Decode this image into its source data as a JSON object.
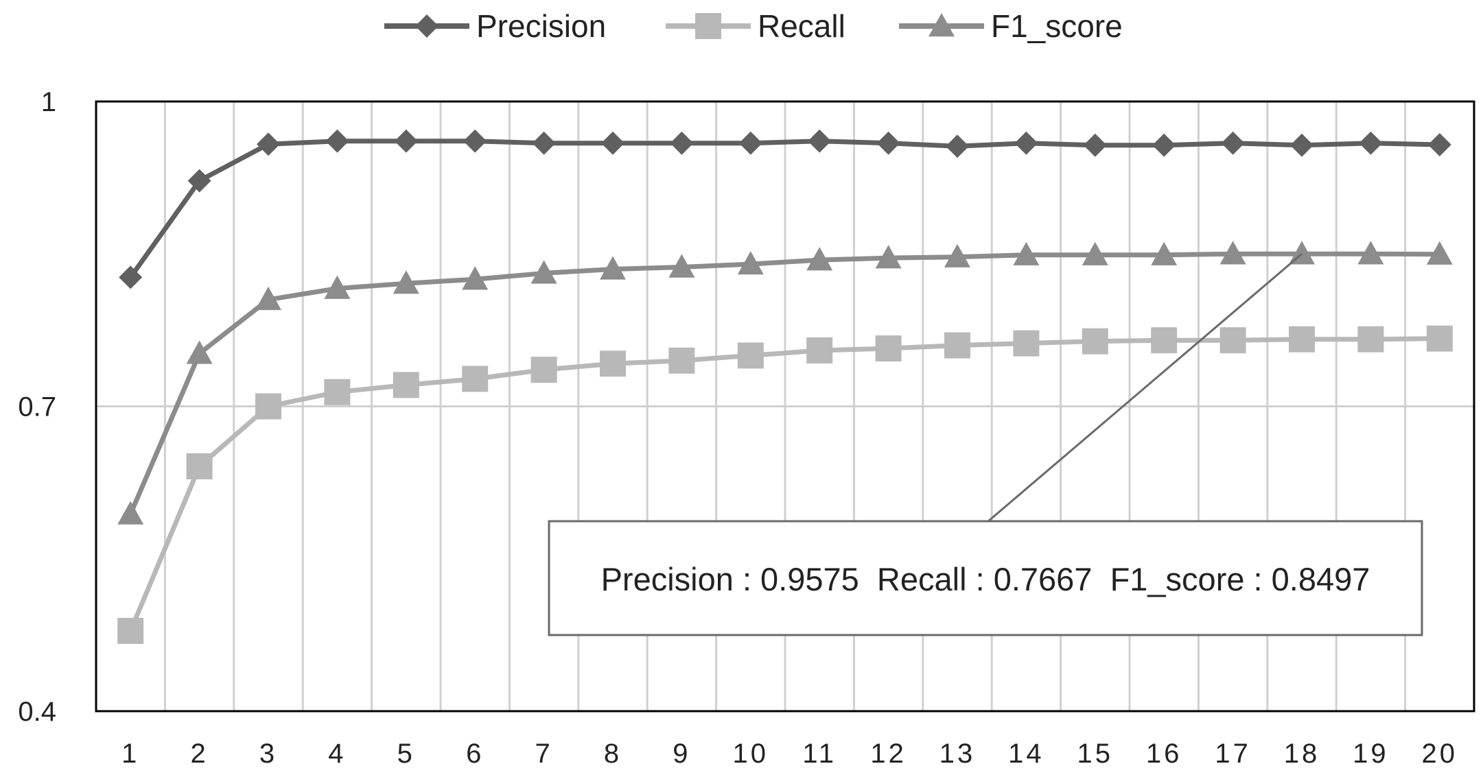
{
  "chart_data": {
    "type": "line",
    "title": "",
    "xlabel": "",
    "ylabel": "",
    "x": [
      1,
      2,
      3,
      4,
      5,
      6,
      7,
      8,
      9,
      10,
      11,
      12,
      13,
      14,
      15,
      16,
      17,
      18,
      19,
      20
    ],
    "x_tick_labels": [
      "1",
      "2",
      "3",
      "4",
      "5",
      "6",
      "7",
      "8",
      "9",
      "10",
      "11",
      "12",
      "13",
      "14",
      "15",
      "16",
      "17",
      "18",
      "19",
      "20"
    ],
    "ylim": [
      0.4,
      1.0
    ],
    "y_ticks": [
      0.4,
      0.7,
      1.0
    ],
    "y_tick_labels": [
      "0.4",
      "0.7",
      "1"
    ],
    "grid": true,
    "legend_position": "top",
    "colors": {
      "precision": "#606060",
      "recall": "#b8b8b8",
      "f1": "#8c8c8c",
      "grid": "#d0d0d0",
      "frame": "#000000"
    },
    "series": [
      {
        "key": "precision",
        "name": "Precision",
        "marker": "diamond",
        "values": [
          0.827,
          0.922,
          0.958,
          0.961,
          0.961,
          0.961,
          0.959,
          0.959,
          0.959,
          0.959,
          0.961,
          0.959,
          0.956,
          0.959,
          0.957,
          0.957,
          0.959,
          0.957,
          0.959,
          0.9575
        ]
      },
      {
        "key": "recall",
        "name": "Recall",
        "marker": "square",
        "values": [
          0.479,
          0.641,
          0.7,
          0.714,
          0.721,
          0.727,
          0.736,
          0.742,
          0.745,
          0.75,
          0.755,
          0.757,
          0.76,
          0.762,
          0.764,
          0.765,
          0.765,
          0.766,
          0.766,
          0.7667
        ]
      },
      {
        "key": "f1",
        "name": "F1_score",
        "marker": "triangle",
        "values": [
          0.594,
          0.752,
          0.805,
          0.816,
          0.821,
          0.825,
          0.831,
          0.835,
          0.837,
          0.84,
          0.844,
          0.846,
          0.847,
          0.849,
          0.849,
          0.849,
          0.85,
          0.85,
          0.85,
          0.8497
        ]
      }
    ],
    "annotation": {
      "text": "Precision : 0.9575  Recall : 0.7667  F1_score : 0.8497",
      "point_x": 18
    }
  }
}
